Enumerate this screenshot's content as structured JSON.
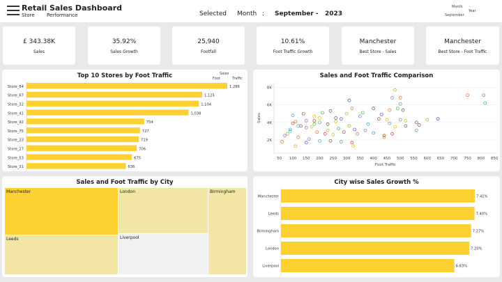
{
  "header": {
    "title": "Retail Sales Dashboard",
    "subtitle_1": "Store",
    "subtitle_2": "Performance",
    "selected": "Selected",
    "month": "Month",
    "colon": ":",
    "month_value": "September -",
    "year_value": "2023",
    "filter_month": "Month",
    "filter_dash": "-",
    "filter_year": "Year",
    "filter_sep": "September"
  },
  "kpis": [
    {
      "value": "£    343.38K",
      "label": "Sales"
    },
    {
      "value": "35.92%",
      "label": "Sales Growth"
    },
    {
      "value": "25,940",
      "label": "Footfall"
    },
    {
      "value": "10.61%",
      "label": "Foot  Traffic     Growth"
    },
    {
      "value": "Manchester",
      "label": "Best  Store -      Sales"
    },
    {
      "value": "Manchester",
      "label": "Best  Store -      Foot  Traffic"
    }
  ],
  "chart_data": [
    {
      "type": "bar",
      "title": "Top 10   Stores  by  Foot     Traffic",
      "legend": [
        "Sales",
        "Foot",
        "Traffic"
      ],
      "categories": [
        "Store_84",
        "Store_67",
        "Store_32",
        "Store_41",
        "Store_92",
        "Store_75",
        "Store_23",
        "Store_27",
        "Store_53",
        "Store_31"
      ],
      "values": [
        1286,
        1125,
        1104,
        1038,
        754,
        727,
        719,
        706,
        675,
        636
      ],
      "labels": [
        "1,286",
        "1,125",
        "1,104",
        "1,038",
        "754",
        "727",
        "719",
        "706",
        "675",
        "636"
      ],
      "color": "#fdd132"
    },
    {
      "type": "scatter",
      "title": "Sales    and      Foot      Traffic   Comparison",
      "xlabel": "Foot   Traffic",
      "ylabel": "Sales",
      "xticks": [
        50,
        100,
        150,
        200,
        250,
        300,
        350,
        400,
        450,
        500,
        550,
        600,
        650,
        700,
        750,
        800,
        850
      ],
      "yticks": [
        {
          "v": 2000,
          "t": "2K"
        },
        {
          "v": 4000,
          "t": "4K"
        },
        {
          "v": 6000,
          "t": "6K"
        },
        {
          "v": 8000,
          "t": "8K"
        }
      ],
      "xlim": [
        30,
        860
      ],
      "ylim": [
        500,
        8500
      ],
      "points": [
        [
          110,
          4100
        ],
        [
          150,
          4200
        ],
        [
          90,
          3200
        ],
        [
          130,
          3600
        ],
        [
          170,
          3500
        ],
        [
          200,
          4000
        ],
        [
          230,
          3800
        ],
        [
          260,
          4500
        ],
        [
          300,
          5000
        ],
        [
          320,
          5600
        ],
        [
          350,
          4700
        ],
        [
          380,
          3800
        ],
        [
          420,
          4400
        ],
        [
          450,
          4300
        ],
        [
          490,
          5600
        ],
        [
          520,
          3600
        ],
        [
          560,
          4000
        ],
        [
          600,
          4300
        ],
        [
          460,
          5400
        ],
        [
          470,
          6800
        ],
        [
          100,
          4800
        ],
        [
          140,
          5000
        ],
        [
          180,
          4700
        ],
        [
          210,
          5100
        ],
        [
          240,
          5300
        ],
        [
          280,
          4400
        ],
        [
          310,
          3600
        ],
        [
          340,
          2700
        ],
        [
          370,
          3100
        ],
        [
          400,
          2800
        ],
        [
          440,
          2500
        ],
        [
          480,
          3500
        ],
        [
          500,
          6100
        ],
        [
          510,
          5400
        ],
        [
          310,
          6500
        ],
        [
          80,
          2700
        ],
        [
          120,
          2300
        ],
        [
          160,
          2100
        ],
        [
          200,
          1900
        ],
        [
          220,
          2700
        ],
        [
          250,
          2600
        ],
        [
          270,
          3300
        ],
        [
          290,
          2900
        ],
        [
          330,
          3200
        ],
        [
          230,
          3100
        ],
        [
          190,
          2900
        ],
        [
          150,
          3400
        ],
        [
          120,
          3600
        ],
        [
          320,
          1700
        ],
        [
          325,
          1300
        ],
        [
          280,
          1800
        ],
        [
          240,
          1900
        ],
        [
          150,
          1700
        ],
        [
          110,
          1300
        ],
        [
          60,
          1800
        ],
        [
          70,
          2500
        ],
        [
          90,
          3000
        ],
        [
          180,
          4200
        ],
        [
          260,
          4100
        ],
        [
          360,
          5100
        ],
        [
          400,
          5600
        ],
        [
          430,
          4900
        ],
        [
          440,
          2300
        ],
        [
          500,
          6800
        ],
        [
          500,
          4300
        ],
        [
          460,
          3900
        ],
        [
          470,
          2700
        ],
        [
          520,
          4200
        ],
        [
          560,
          3100
        ],
        [
          570,
          3700
        ],
        [
          640,
          4400
        ],
        [
          480,
          7700
        ],
        [
          750,
          7100
        ],
        [
          810,
          7100
        ],
        [
          815,
          6200
        ],
        [
          100,
          3900
        ],
        [
          200,
          4500
        ],
        [
          180,
          3800
        ]
      ],
      "colors": [
        "#e46b2b",
        "#8a6bc8",
        "#3aa3c7",
        "#c03a3a",
        "#e6b800",
        "#4caf50",
        "#6d4c41",
        "#3f51b5",
        "#d4a017"
      ]
    },
    {
      "type": "table",
      "title": "Sales     and      Foot      Traffic    by   City",
      "categories": [
        "Manchester",
        "London",
        "Birmingham",
        "Leeds",
        "Liverpool"
      ],
      "colors": [
        "#fdd132",
        "#f3e5a3",
        "#f3e5a3",
        "#f3e5a3",
        "#f1f1f1"
      ]
    },
    {
      "type": "bar",
      "title": "City       wise      Sales     Growth %",
      "categories": [
        "Manchester",
        "Leeds",
        "Birmingham",
        "London",
        "Liverpool"
      ],
      "values": [
        7.41,
        7.4,
        7.27,
        7.2,
        6.63
      ],
      "labels": [
        "7.41%",
        "7.40%",
        "7.27%",
        "7.20%",
        "6.63%"
      ],
      "color": "#fdd132"
    }
  ]
}
